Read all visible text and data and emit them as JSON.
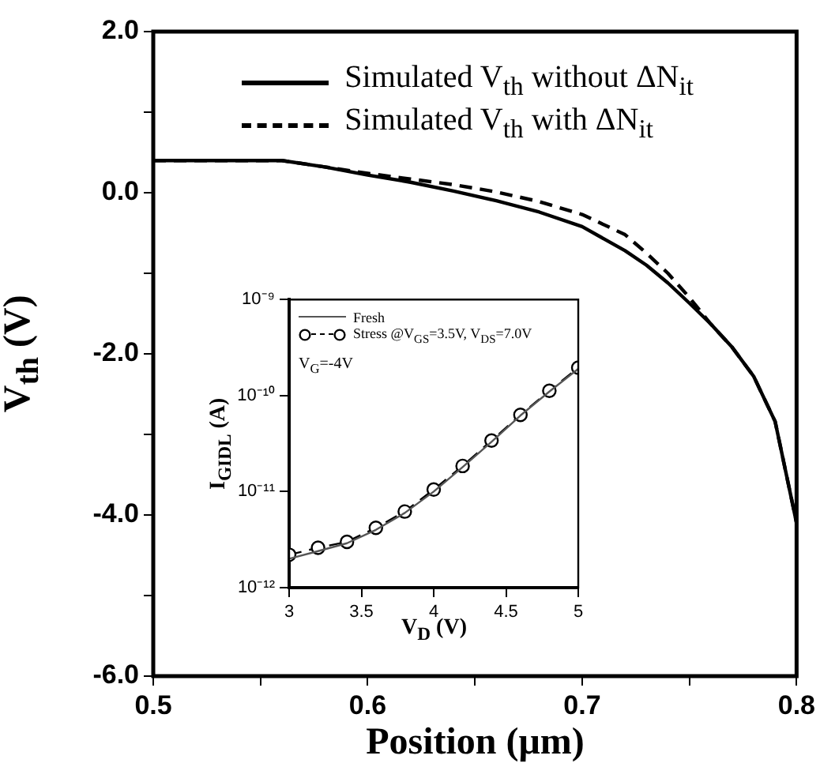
{
  "chart_data": [
    {
      "type": "line",
      "xlabel": "Position (μm)",
      "ylabel": "V$_{th}$ (V)",
      "xlim": [
        0.5,
        0.8
      ],
      "ylim": [
        -6,
        2
      ],
      "xticks": [
        0.5,
        {
          "value": 0.55,
          "label": null
        },
        0.6,
        {
          "value": 0.65,
          "label": null
        },
        0.7,
        {
          "value": 0.75,
          "label": null
        },
        0.8
      ],
      "yticks": [
        {
          "value": -6,
          "label": "-6.0"
        },
        {
          "value": -5,
          "label": null
        },
        {
          "value": -4,
          "label": "-4.0"
        },
        {
          "value": -3,
          "label": null
        },
        {
          "value": -2,
          "label": "-2.0"
        },
        {
          "value": -1,
          "label": null
        },
        {
          "value": 0,
          "label": "0.0"
        },
        {
          "value": 1,
          "label": null
        },
        {
          "value": 2,
          "label": "2.0"
        }
      ],
      "legend": "top right",
      "marker": "none",
      "series": [
        {
          "name": "Simulated V$_{th}$ without ΔN$_{it}$",
          "color": "#000000",
          "line_style": "solid",
          "x": [
            0.5,
            0.56,
            0.58,
            0.6,
            0.62,
            0.64,
            0.66,
            0.68,
            0.7,
            0.72,
            0.73,
            0.74,
            0.75,
            0.76,
            0.77,
            0.78,
            0.79,
            0.8
          ],
          "values": [
            0.4,
            0.4,
            0.32,
            0.22,
            0.13,
            0.02,
            -0.1,
            -0.24,
            -0.42,
            -0.72,
            -0.9,
            -1.12,
            -1.37,
            -1.63,
            -1.92,
            -2.28,
            -2.84,
            -4.1
          ]
        },
        {
          "name": "Simulated V$_{th}$ with ΔN$_{it}$",
          "color": "#000000",
          "line_style": "dashed",
          "x": [
            0.5,
            0.56,
            0.58,
            0.6,
            0.62,
            0.64,
            0.66,
            0.68,
            0.7,
            0.72,
            0.73,
            0.74,
            0.75,
            0.76,
            0.77,
            0.78,
            0.79,
            0.8
          ],
          "values": [
            0.4,
            0.4,
            0.32,
            0.24,
            0.17,
            0.1,
            0.01,
            -0.11,
            -0.27,
            -0.52,
            -0.75,
            -1.0,
            -1.3,
            -1.63,
            -1.92,
            -2.28,
            -2.84,
            -4.1
          ]
        }
      ]
    },
    {
      "type": "line",
      "xlabel": "V$_{D}$ (V)",
      "ylabel": "I$_{GIDL}$ (A)",
      "xlim": [
        3,
        5
      ],
      "ylim": [
        1e-12,
        1e-09
      ],
      "log": "y",
      "xticks": [
        3,
        3.5,
        4,
        4.5,
        5
      ],
      "yticks": [
        {
          "value": 1e-12,
          "label": "10⁻¹²"
        },
        {
          "value": 1e-11,
          "label": "10⁻¹¹"
        },
        {
          "value": 1e-10,
          "label": "10⁻¹⁰"
        },
        {
          "value": 1e-09,
          "label": "10⁻⁹"
        }
      ],
      "legend": "top left",
      "annotations": [
        "V$_{G}$=-4V"
      ],
      "series": [
        {
          "name": "Fresh",
          "color": "#555555",
          "line_style": "solid",
          "marker": "none",
          "x": [
            3,
            3.2,
            3.4,
            3.6,
            3.8,
            4,
            4.2,
            4.4,
            4.6,
            4.8,
            5
          ],
          "values": [
            2e-12,
            2.4e-12,
            2.9e-12,
            4e-12,
            6e-12,
            1e-11,
            1.8e-11,
            3.3e-11,
            6.2e-11,
            1.1e-10,
            1.9e-10
          ]
        },
        {
          "name": "Stress @V$_{GS}$=3.5V, V$_{DS}$=7.0V",
          "color": "#000000",
          "line_style": "dashed",
          "marker": "circle",
          "x": [
            3,
            3.2,
            3.4,
            3.6,
            3.8,
            4,
            4.2,
            4.4,
            4.6,
            4.8,
            5
          ],
          "values": [
            2.2e-12,
            2.6e-12,
            3e-12,
            4.2e-12,
            6.2e-12,
            1.05e-11,
            1.85e-11,
            3.4e-11,
            6.3e-11,
            1.12e-10,
            1.95e-10
          ]
        }
      ]
    }
  ]
}
